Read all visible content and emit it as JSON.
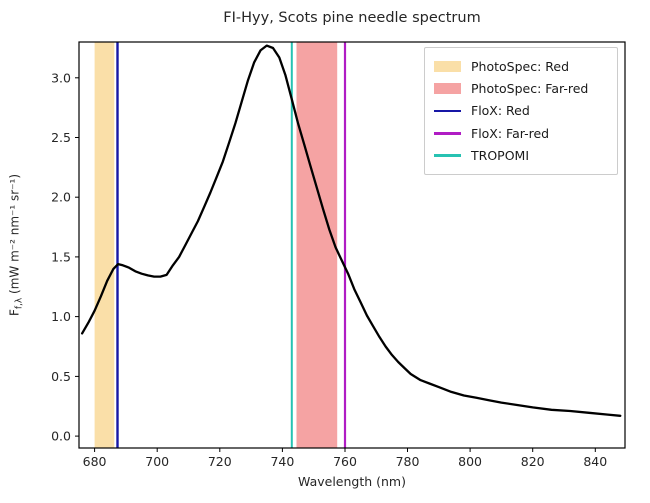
{
  "chart_data": {
    "type": "line",
    "title": "FI-Hyy, Scots pine needle spectrum",
    "xlabel": "Wavelength (nm)",
    "ylabel_F": "F",
    "ylabel_sub": "f,λ",
    "ylabel_units": "(mW m⁻² nm⁻¹ sr⁻¹)",
    "xlim": [
      675,
      849.5
    ],
    "ylim": [
      -0.1,
      3.3
    ],
    "xticks": [
      680,
      700,
      720,
      740,
      760,
      780,
      800,
      820,
      840
    ],
    "yticks": [
      "0.0",
      "0.5",
      "1.0",
      "1.5",
      "2.0",
      "2.5",
      "3.0"
    ],
    "grid": false,
    "bands": [
      {
        "name": "PhotoSpec: Red",
        "from": 680,
        "to": 686.3,
        "color": "#FADFA8"
      },
      {
        "name": "PhotoSpec: Far-red",
        "from": 744.5,
        "to": 757.5,
        "color": "#F5A3A3"
      }
    ],
    "vlines": [
      {
        "name": "FloX: Red",
        "x": 687.3,
        "color": "#1717A6",
        "width": 2.4
      },
      {
        "name": "FloX: Far-red",
        "x": 760,
        "color": "#B01CC4",
        "width": 2.2
      },
      {
        "name": "TROPOMI",
        "x": 743,
        "color": "#27C2B2",
        "width": 2.0
      }
    ],
    "series": [
      {
        "name": "needle fluorescence spectrum",
        "color": "#000000",
        "x": [
          676,
          678,
          680,
          682,
          684,
          686,
          687.5,
          689,
          691,
          693,
          695,
          697,
          699,
          701,
          703,
          705,
          707,
          709,
          711,
          713,
          715,
          717,
          719,
          721,
          723,
          725,
          727,
          729,
          731,
          733,
          735,
          737,
          739,
          741,
          743,
          745,
          747,
          749,
          751,
          753,
          755,
          757,
          759,
          761,
          763,
          765,
          767,
          769,
          771,
          773,
          775,
          777,
          779,
          781,
          784,
          787,
          790,
          794,
          798,
          802,
          806,
          810,
          815,
          820,
          826,
          832,
          838,
          844,
          848
        ],
        "y": [
          0.86,
          0.95,
          1.05,
          1.17,
          1.3,
          1.4,
          1.44,
          1.43,
          1.41,
          1.38,
          1.36,
          1.345,
          1.335,
          1.335,
          1.35,
          1.43,
          1.5,
          1.6,
          1.7,
          1.8,
          1.92,
          2.04,
          2.17,
          2.3,
          2.46,
          2.62,
          2.8,
          2.98,
          3.13,
          3.23,
          3.27,
          3.25,
          3.17,
          3.02,
          2.82,
          2.62,
          2.44,
          2.26,
          2.08,
          1.9,
          1.73,
          1.58,
          1.47,
          1.36,
          1.23,
          1.12,
          1.01,
          0.92,
          0.83,
          0.75,
          0.68,
          0.62,
          0.57,
          0.52,
          0.47,
          0.44,
          0.41,
          0.37,
          0.34,
          0.32,
          0.3,
          0.28,
          0.26,
          0.24,
          0.22,
          0.21,
          0.195,
          0.18,
          0.17
        ]
      }
    ],
    "legend": {
      "position": "upper right",
      "entries": [
        {
          "label": "PhotoSpec: Red",
          "type": "patch",
          "color": "#FADFA8"
        },
        {
          "label": "PhotoSpec: Far-red",
          "type": "patch",
          "color": "#F5A3A3"
        },
        {
          "label": "FloX: Red",
          "type": "line",
          "color": "#1717A6"
        },
        {
          "label": "FloX: Far-red",
          "type": "line",
          "color": "#B01CC4"
        },
        {
          "label": "TROPOMI",
          "type": "line",
          "color": "#27C2B2"
        }
      ]
    }
  }
}
